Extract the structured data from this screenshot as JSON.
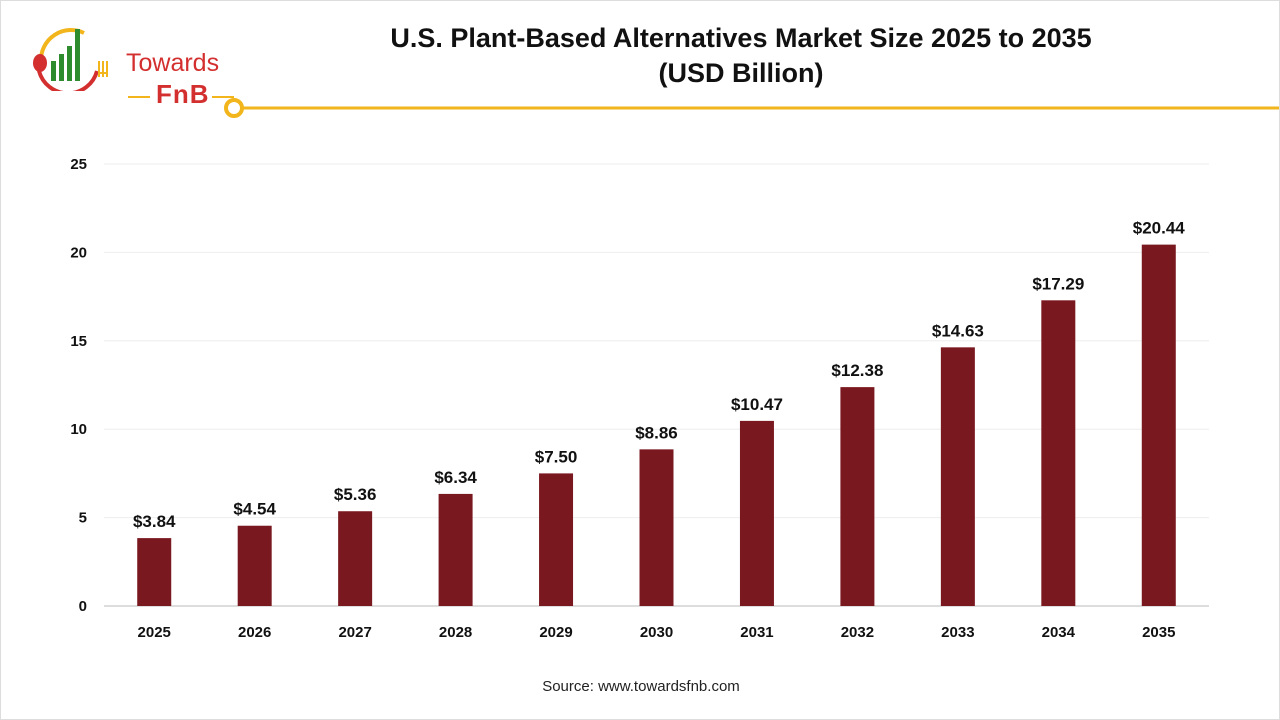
{
  "logo": {
    "line1": "Towards",
    "line2": "FnB"
  },
  "chart_data": {
    "type": "bar",
    "title": "U.S. Plant-Based Alternatives Market Size 2025 to 2035 (USD Billion)",
    "title_lines": [
      "U.S. Plant-Based Alternatives Market Size 2025 to 2035",
      "(USD Billion)"
    ],
    "categories": [
      "2025",
      "2026",
      "2027",
      "2028",
      "2029",
      "2030",
      "2031",
      "2032",
      "2033",
      "2034",
      "2035"
    ],
    "values": [
      3.84,
      4.54,
      5.36,
      6.34,
      7.5,
      8.86,
      10.47,
      12.38,
      14.63,
      17.29,
      20.44
    ],
    "data_labels": [
      "$3.84",
      "$4.54",
      "$5.36",
      "$6.34",
      "$7.50",
      "$8.86",
      "$10.47",
      "$12.38",
      "$14.63",
      "$17.29",
      "$20.44"
    ],
    "yticks": [
      0,
      5,
      10,
      15,
      20,
      25
    ],
    "ylim": [
      0,
      25
    ],
    "xlabel": "",
    "ylabel": "",
    "grid": true,
    "bar_color": "#7a1820",
    "accent_color": "#f2b51c"
  },
  "source": "Source: www.towardsfnb.com"
}
